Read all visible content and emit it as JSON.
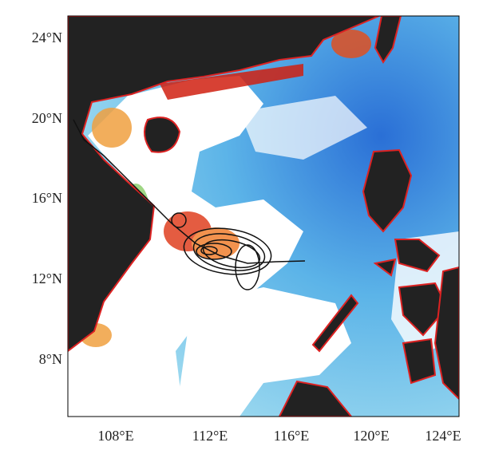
{
  "axes": {
    "x_ticks": [
      "108°E",
      "112°E",
      "116°E",
      "120°E",
      "124°E"
    ],
    "y_ticks": [
      "24°N",
      "20°N",
      "16°N",
      "12°N",
      "8°N"
    ]
  }
}
